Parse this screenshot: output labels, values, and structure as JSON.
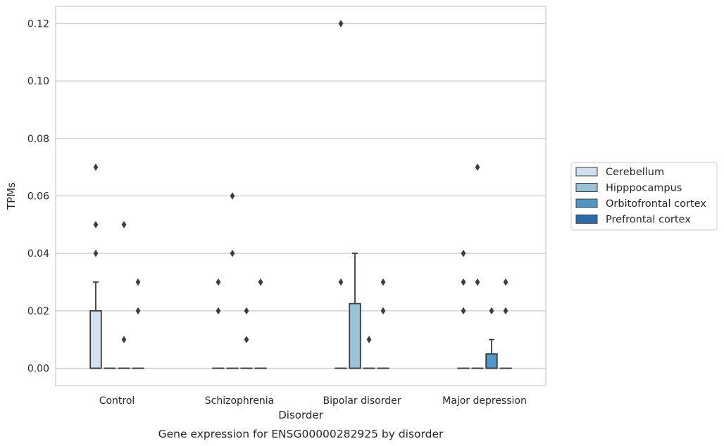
{
  "chart_data": {
    "type": "box",
    "title": "",
    "caption": "Gene expression for ENSG00000282925 by disorder",
    "xlabel": "Disorder",
    "ylabel": "TPMs",
    "categories": [
      "Control",
      "Schizophrenia",
      "Bipolar disorder",
      "Major depression"
    ],
    "ylim": [
      -0.006,
      0.126
    ],
    "yticks": [
      0.0,
      0.02,
      0.04,
      0.06,
      0.08,
      0.1,
      0.12
    ],
    "ytick_labels": [
      "0.00",
      "0.02",
      "0.04",
      "0.06",
      "0.08",
      "0.10",
      "0.12"
    ],
    "grid": "horizontal",
    "legend": {
      "placement": "right, outside plot"
    },
    "series": [
      {
        "name": "Cerebellum",
        "color": "#d1e1ef",
        "boxes": [
          {
            "q1": 0.0,
            "median": 0.0,
            "q3": 0.02,
            "whisker_low": 0.0,
            "whisker_high": 0.03,
            "outliers": [
              0.07,
              0.05,
              0.04
            ]
          },
          {
            "q1": 0.0,
            "median": 0.0,
            "q3": 0.0,
            "whisker_low": 0.0,
            "whisker_high": 0.0,
            "outliers": [
              0.03,
              0.02
            ]
          },
          {
            "q1": 0.0,
            "median": 0.0,
            "q3": 0.0,
            "whisker_low": 0.0,
            "whisker_high": 0.0,
            "outliers": [
              0.12,
              0.03
            ]
          },
          {
            "q1": 0.0,
            "median": 0.0,
            "q3": 0.0,
            "whisker_low": 0.0,
            "whisker_high": 0.0,
            "outliers": [
              0.04,
              0.03,
              0.02
            ]
          }
        ]
      },
      {
        "name": "Hipppocampus",
        "color": "#9ac3da",
        "boxes": [
          {
            "q1": 0.0,
            "median": 0.0,
            "q3": 0.0,
            "whisker_low": 0.0,
            "whisker_high": 0.0,
            "outliers": []
          },
          {
            "q1": 0.0,
            "median": 0.0,
            "q3": 0.0,
            "whisker_low": 0.0,
            "whisker_high": 0.0,
            "outliers": [
              0.06,
              0.04
            ]
          },
          {
            "q1": 0.0,
            "median": 0.0,
            "q3": 0.0225,
            "whisker_low": 0.0,
            "whisker_high": 0.04,
            "outliers": []
          },
          {
            "q1": 0.0,
            "median": 0.0,
            "q3": 0.0,
            "whisker_low": 0.0,
            "whisker_high": 0.0,
            "outliers": [
              0.07,
              0.03
            ]
          }
        ]
      },
      {
        "name": "Orbitofrontal cortex",
        "color": "#5296c5",
        "boxes": [
          {
            "q1": 0.0,
            "median": 0.0,
            "q3": 0.0,
            "whisker_low": 0.0,
            "whisker_high": 0.0,
            "outliers": [
              0.05,
              0.01
            ]
          },
          {
            "q1": 0.0,
            "median": 0.0,
            "q3": 0.0,
            "whisker_low": 0.0,
            "whisker_high": 0.0,
            "outliers": [
              0.02,
              0.01
            ]
          },
          {
            "q1": 0.0,
            "median": 0.0,
            "q3": 0.0,
            "whisker_low": 0.0,
            "whisker_high": 0.0,
            "outliers": [
              0.01
            ]
          },
          {
            "q1": 0.0,
            "median": 0.0,
            "q3": 0.005,
            "whisker_low": 0.0,
            "whisker_high": 0.01,
            "outliers": [
              0.02
            ]
          }
        ]
      },
      {
        "name": "Prefrontal cortex",
        "color": "#2a6aab",
        "boxes": [
          {
            "q1": 0.0,
            "median": 0.0,
            "q3": 0.0,
            "whisker_low": 0.0,
            "whisker_high": 0.0,
            "outliers": [
              0.03,
              0.02
            ]
          },
          {
            "q1": 0.0,
            "median": 0.0,
            "q3": 0.0,
            "whisker_low": 0.0,
            "whisker_high": 0.0,
            "outliers": [
              0.03
            ]
          },
          {
            "q1": 0.0,
            "median": 0.0,
            "q3": 0.0,
            "whisker_low": 0.0,
            "whisker_high": 0.0,
            "outliers": [
              0.03,
              0.02
            ]
          },
          {
            "q1": 0.0,
            "median": 0.0,
            "q3": 0.0,
            "whisker_low": 0.0,
            "whisker_high": 0.0,
            "outliers": [
              0.03,
              0.02
            ]
          }
        ]
      }
    ]
  }
}
